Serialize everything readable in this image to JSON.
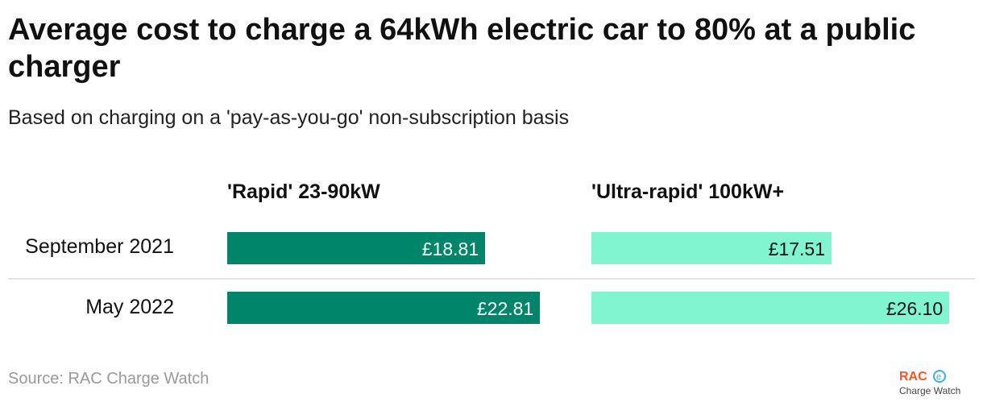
{
  "chart_data": {
    "type": "bar",
    "title": "Average cost to charge a 64kWh electric car to 80% at a public charger",
    "subtitle": "Based on charging on a 'pay-as-you-go' non-subscription basis",
    "categories": [
      "September 2021",
      "May 2022"
    ],
    "series": [
      {
        "name": "'Rapid' 23-90kW",
        "values": [
          18.81,
          22.81
        ],
        "labels": [
          "£18.81",
          "£22.81"
        ],
        "color": "#00856a",
        "text_color": "#ffffff"
      },
      {
        "name": "'Ultra-rapid' 100kW+",
        "values": [
          17.51,
          26.1
        ],
        "labels": [
          "£17.51",
          "£26.10"
        ],
        "color": "#80f5cf",
        "text_color": "#111111"
      }
    ],
    "source": "Source: RAC Charge Watch"
  },
  "logo": {
    "brand": "RAC",
    "sub": "Charge Watch"
  }
}
